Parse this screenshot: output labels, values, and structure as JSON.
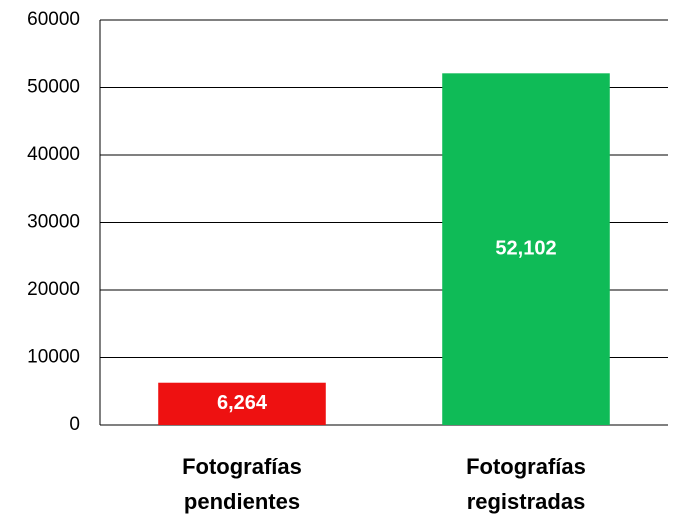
{
  "chart_data": {
    "type": "bar",
    "categories": [
      "Fotografías pendientes",
      "Fotografías registradas"
    ],
    "values": [
      6264,
      52102
    ],
    "value_labels": [
      "6,264",
      "52,102"
    ],
    "colors": [
      "#ee1111",
      "#0fbb57"
    ],
    "ylim": [
      0,
      60000
    ],
    "yticks": [
      0,
      10000,
      20000,
      30000,
      40000,
      50000,
      60000
    ],
    "grid": true
  }
}
